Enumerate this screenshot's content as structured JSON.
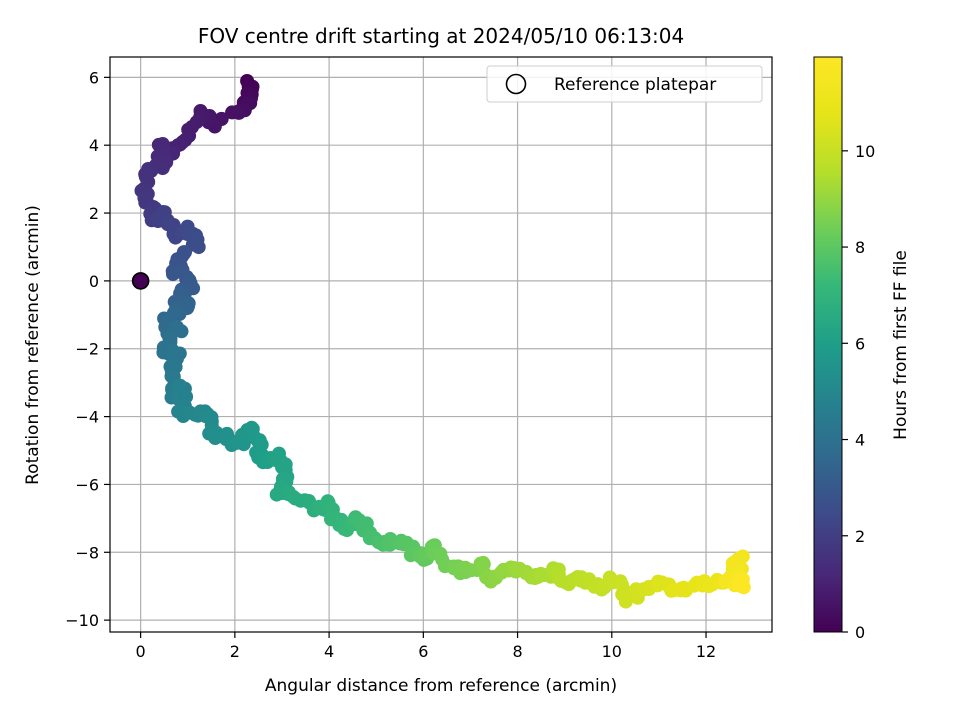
{
  "chart_data": {
    "type": "scatter",
    "title": "FOV centre drift starting at 2024/05/10 06:13:04",
    "xlabel": "Angular distance from reference (arcmin)",
    "ylabel": "Rotation from reference (arcmin)",
    "xlim": [
      -0.65,
      13.4
    ],
    "ylim": [
      -10.35,
      6.6
    ],
    "xticks": [
      0,
      2,
      4,
      6,
      8,
      10,
      12
    ],
    "yticks": [
      -10,
      -8,
      -6,
      -4,
      -2,
      0,
      2,
      4,
      6
    ],
    "grid": true,
    "legend": {
      "placement": "top-right",
      "entries": [
        "Reference platepar"
      ]
    },
    "colorbar": {
      "label": "Hours from first FF file",
      "range": [
        0,
        11.95
      ],
      "ticks": [
        0,
        2,
        4,
        6,
        8,
        10
      ],
      "colormap": "viridis"
    },
    "reference_point": {
      "x": 0,
      "y": 0
    },
    "path": [
      [
        2.35,
        5.8,
        0.0
      ],
      [
        2.3,
        5.55,
        0.15
      ],
      [
        2.25,
        5.2,
        0.3
      ],
      [
        2.1,
        5.0,
        0.45
      ],
      [
        1.5,
        4.65,
        0.6
      ],
      [
        1.3,
        5.0,
        0.75
      ],
      [
        0.95,
        4.3,
        0.9
      ],
      [
        0.7,
        3.75,
        1.05
      ],
      [
        0.4,
        3.95,
        1.2
      ],
      [
        0.5,
        3.5,
        1.35
      ],
      [
        0.2,
        3.15,
        1.5
      ],
      [
        0.1,
        2.6,
        1.65
      ],
      [
        0.2,
        2.1,
        1.8
      ],
      [
        0.3,
        1.75,
        1.95
      ],
      [
        0.45,
        1.95,
        2.1
      ],
      [
        0.75,
        1.35,
        2.25
      ],
      [
        1.05,
        1.55,
        2.4
      ],
      [
        1.15,
        1.1,
        2.55
      ],
      [
        0.9,
        0.75,
        2.7
      ],
      [
        0.7,
        0.3,
        2.85
      ],
      [
        1.1,
        0.05,
        3.0
      ],
      [
        0.95,
        -0.3,
        3.15
      ],
      [
        0.75,
        -0.6,
        3.3
      ],
      [
        1.0,
        -0.8,
        3.45
      ],
      [
        0.55,
        -1.05,
        3.6
      ],
      [
        0.5,
        -1.5,
        3.75
      ],
      [
        0.8,
        -1.4,
        3.9
      ],
      [
        0.5,
        -2.0,
        4.05
      ],
      [
        0.75,
        -2.15,
        4.2
      ],
      [
        0.7,
        -2.75,
        4.35
      ],
      [
        0.6,
        -3.35,
        4.5
      ],
      [
        0.9,
        -3.1,
        4.65
      ],
      [
        0.85,
        -3.75,
        4.8
      ],
      [
        1.05,
        -3.95,
        4.95
      ],
      [
        1.45,
        -3.95,
        5.1
      ],
      [
        1.55,
        -4.5,
        5.25
      ],
      [
        1.85,
        -4.6,
        5.4
      ],
      [
        2.1,
        -4.85,
        5.55
      ],
      [
        2.3,
        -4.4,
        5.7
      ],
      [
        2.5,
        -4.8,
        5.85
      ],
      [
        2.6,
        -5.4,
        6.0
      ],
      [
        2.9,
        -5.15,
        6.15
      ],
      [
        3.1,
        -5.7,
        6.3
      ],
      [
        2.95,
        -6.2,
        6.45
      ],
      [
        3.35,
        -6.35,
        6.6
      ],
      [
        3.7,
        -6.75,
        6.75
      ],
      [
        3.95,
        -6.55,
        6.9
      ],
      [
        4.1,
        -7.0,
        7.05
      ],
      [
        4.35,
        -7.3,
        7.2
      ],
      [
        4.6,
        -6.95,
        7.35
      ],
      [
        4.9,
        -7.5,
        7.5
      ],
      [
        5.15,
        -7.85,
        7.65
      ],
      [
        5.5,
        -7.6,
        7.8
      ],
      [
        5.75,
        -7.95,
        7.95
      ],
      [
        6.0,
        -8.15,
        8.1
      ],
      [
        6.2,
        -7.85,
        8.25
      ],
      [
        6.45,
        -8.3,
        8.4
      ],
      [
        6.85,
        -8.55,
        8.55
      ],
      [
        7.2,
        -8.35,
        8.7
      ],
      [
        7.5,
        -8.8,
        8.85
      ],
      [
        7.75,
        -8.5,
        9.0
      ],
      [
        8.05,
        -8.6,
        9.15
      ],
      [
        8.4,
        -8.75,
        9.3
      ],
      [
        8.75,
        -8.55,
        9.45
      ],
      [
        9.05,
        -8.85,
        9.6
      ],
      [
        9.4,
        -8.75,
        9.75
      ],
      [
        9.75,
        -9.05,
        9.9
      ],
      [
        10.1,
        -8.8,
        10.05
      ],
      [
        10.35,
        -9.35,
        10.2
      ],
      [
        10.7,
        -9.1,
        10.35
      ],
      [
        11.0,
        -8.9,
        10.5
      ],
      [
        11.35,
        -9.15,
        10.65
      ],
      [
        11.7,
        -9.0,
        10.8
      ],
      [
        12.0,
        -8.85,
        10.95
      ],
      [
        12.3,
        -8.95,
        11.1
      ],
      [
        12.6,
        -8.7,
        11.25
      ],
      [
        12.75,
        -8.15,
        11.4
      ],
      [
        12.45,
        -8.9,
        11.55
      ],
      [
        12.7,
        -8.8,
        11.75
      ],
      [
        12.75,
        -9.0,
        11.95
      ]
    ]
  }
}
